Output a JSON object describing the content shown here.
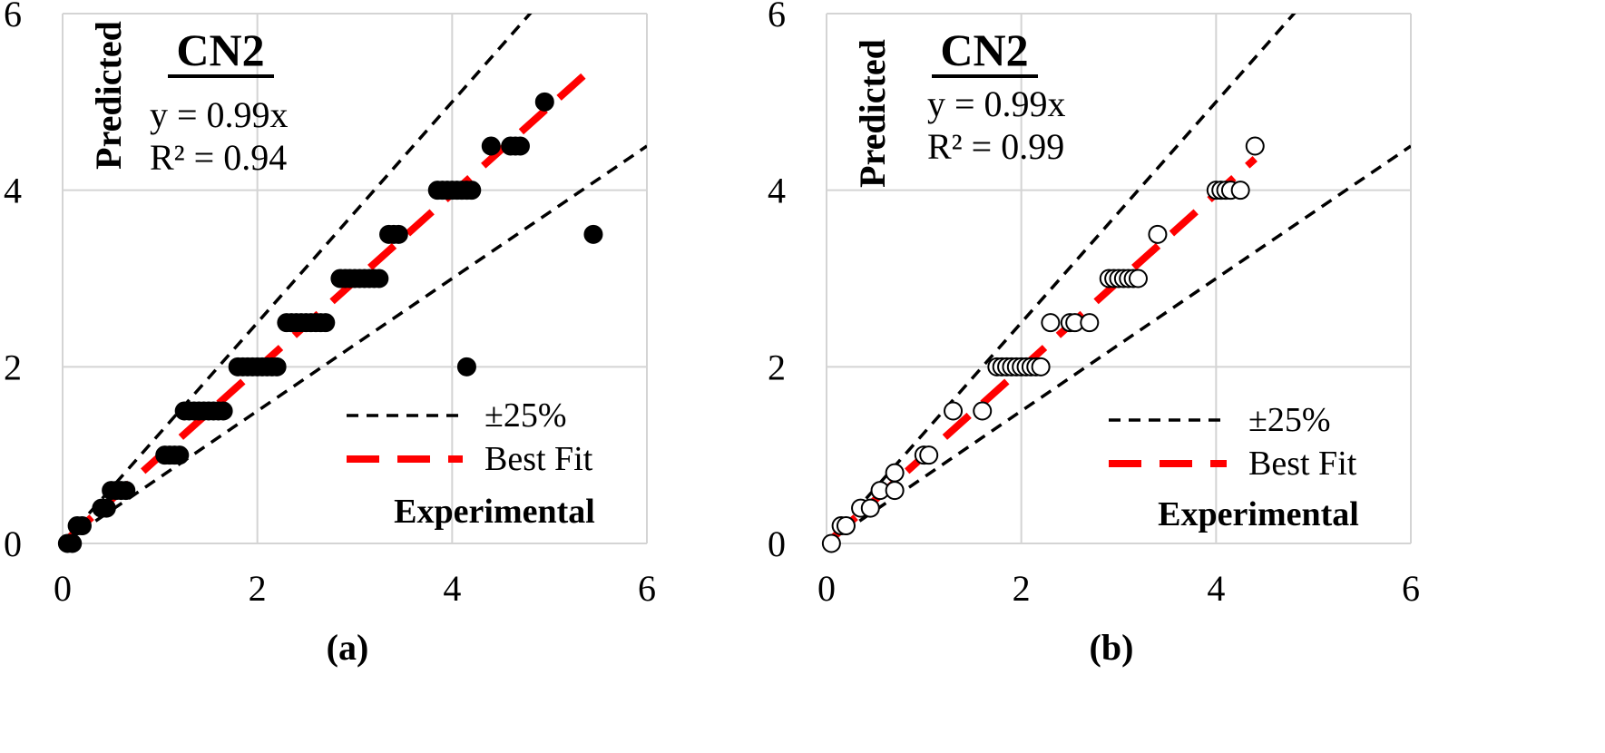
{
  "chart_data": [
    {
      "type": "scatter",
      "panel_label": "(a)",
      "title": "CN2",
      "equation": "y = 0.99x",
      "r2_text": "R² = 0.94",
      "xlabel": "Experimental",
      "ylabel": "Predicted",
      "xlim": [
        0,
        6
      ],
      "ylim": [
        0,
        6
      ],
      "xticks": [
        "0",
        "2",
        "4",
        "6"
      ],
      "yticks": [
        "0",
        "2",
        "4",
        "6"
      ],
      "grid": true,
      "legend": [
        "±25%",
        "Best Fit"
      ],
      "legend_position": "bottom-right",
      "marker": "filled",
      "fit_slope": 0.99,
      "fit_range": [
        0.05,
        5.4
      ],
      "tolerance": 0.25,
      "points": [
        [
          0.05,
          0.0
        ],
        [
          0.1,
          0.0
        ],
        [
          0.15,
          0.2
        ],
        [
          0.2,
          0.2
        ],
        [
          0.4,
          0.4
        ],
        [
          0.45,
          0.4
        ],
        [
          0.5,
          0.6
        ],
        [
          0.55,
          0.6
        ],
        [
          0.6,
          0.6
        ],
        [
          0.65,
          0.6
        ],
        [
          1.05,
          1.0
        ],
        [
          1.1,
          1.0
        ],
        [
          1.15,
          1.0
        ],
        [
          1.2,
          1.0
        ],
        [
          1.25,
          1.5
        ],
        [
          1.3,
          1.5
        ],
        [
          1.35,
          1.5
        ],
        [
          1.4,
          1.5
        ],
        [
          1.45,
          1.5
        ],
        [
          1.5,
          1.5
        ],
        [
          1.55,
          1.5
        ],
        [
          1.6,
          1.5
        ],
        [
          1.65,
          1.5
        ],
        [
          1.8,
          2.0
        ],
        [
          1.85,
          2.0
        ],
        [
          1.9,
          2.0
        ],
        [
          1.95,
          2.0
        ],
        [
          2.0,
          2.0
        ],
        [
          2.05,
          2.0
        ],
        [
          2.1,
          2.0
        ],
        [
          2.15,
          2.0
        ],
        [
          2.2,
          2.0
        ],
        [
          2.3,
          2.5
        ],
        [
          2.35,
          2.5
        ],
        [
          2.4,
          2.5
        ],
        [
          2.45,
          2.5
        ],
        [
          2.5,
          2.5
        ],
        [
          2.55,
          2.5
        ],
        [
          2.6,
          2.5
        ],
        [
          2.65,
          2.5
        ],
        [
          2.7,
          2.5
        ],
        [
          2.85,
          3.0
        ],
        [
          2.9,
          3.0
        ],
        [
          2.95,
          3.0
        ],
        [
          3.0,
          3.0
        ],
        [
          3.05,
          3.0
        ],
        [
          3.1,
          3.0
        ],
        [
          3.15,
          3.0
        ],
        [
          3.2,
          3.0
        ],
        [
          3.25,
          3.0
        ],
        [
          3.35,
          3.5
        ],
        [
          3.4,
          3.5
        ],
        [
          3.45,
          3.5
        ],
        [
          3.85,
          4.0
        ],
        [
          3.9,
          4.0
        ],
        [
          3.95,
          4.0
        ],
        [
          4.0,
          4.0
        ],
        [
          4.05,
          4.0
        ],
        [
          4.1,
          4.0
        ],
        [
          4.15,
          4.0
        ],
        [
          4.2,
          4.0
        ],
        [
          4.4,
          4.5
        ],
        [
          4.6,
          4.5
        ],
        [
          4.65,
          4.5
        ],
        [
          4.7,
          4.5
        ],
        [
          4.95,
          5.0
        ],
        [
          4.15,
          2.0
        ],
        [
          5.45,
          3.5
        ]
      ]
    },
    {
      "type": "scatter",
      "panel_label": "(b)",
      "title": "CN2",
      "equation": "y = 0.99x",
      "r2_text": "R² = 0.99",
      "xlabel": "Experimental",
      "ylabel": "Predicted",
      "xlim": [
        0,
        6
      ],
      "ylim": [
        0,
        6
      ],
      "xticks": [
        "0",
        "2",
        "4",
        "6"
      ],
      "yticks": [
        "0",
        "2",
        "4",
        "6"
      ],
      "grid": true,
      "legend": [
        "±25%",
        "Best Fit"
      ],
      "legend_position": "bottom-right",
      "marker": "hollow",
      "fit_slope": 0.99,
      "fit_range": [
        0.05,
        4.4
      ],
      "tolerance": 0.25,
      "points": [
        [
          0.05,
          0.0
        ],
        [
          0.15,
          0.2
        ],
        [
          0.2,
          0.2
        ],
        [
          0.35,
          0.4
        ],
        [
          0.45,
          0.4
        ],
        [
          0.55,
          0.6
        ],
        [
          0.7,
          0.6
        ],
        [
          0.7,
          0.8
        ],
        [
          1.0,
          1.0
        ],
        [
          1.05,
          1.0
        ],
        [
          1.3,
          1.5
        ],
        [
          1.6,
          1.5
        ],
        [
          1.75,
          2.0
        ],
        [
          1.8,
          2.0
        ],
        [
          1.85,
          2.0
        ],
        [
          1.9,
          2.0
        ],
        [
          1.95,
          2.0
        ],
        [
          2.0,
          2.0
        ],
        [
          2.05,
          2.0
        ],
        [
          2.1,
          2.0
        ],
        [
          2.15,
          2.0
        ],
        [
          2.2,
          2.0
        ],
        [
          2.3,
          2.5
        ],
        [
          2.5,
          2.5
        ],
        [
          2.55,
          2.5
        ],
        [
          2.7,
          2.5
        ],
        [
          2.9,
          3.0
        ],
        [
          2.95,
          3.0
        ],
        [
          3.0,
          3.0
        ],
        [
          3.05,
          3.0
        ],
        [
          3.1,
          3.0
        ],
        [
          3.15,
          3.0
        ],
        [
          3.2,
          3.0
        ],
        [
          3.4,
          3.5
        ],
        [
          4.0,
          4.0
        ],
        [
          4.05,
          4.0
        ],
        [
          4.1,
          4.0
        ],
        [
          4.15,
          4.0
        ],
        [
          4.25,
          4.0
        ],
        [
          4.4,
          4.5
        ]
      ]
    }
  ]
}
